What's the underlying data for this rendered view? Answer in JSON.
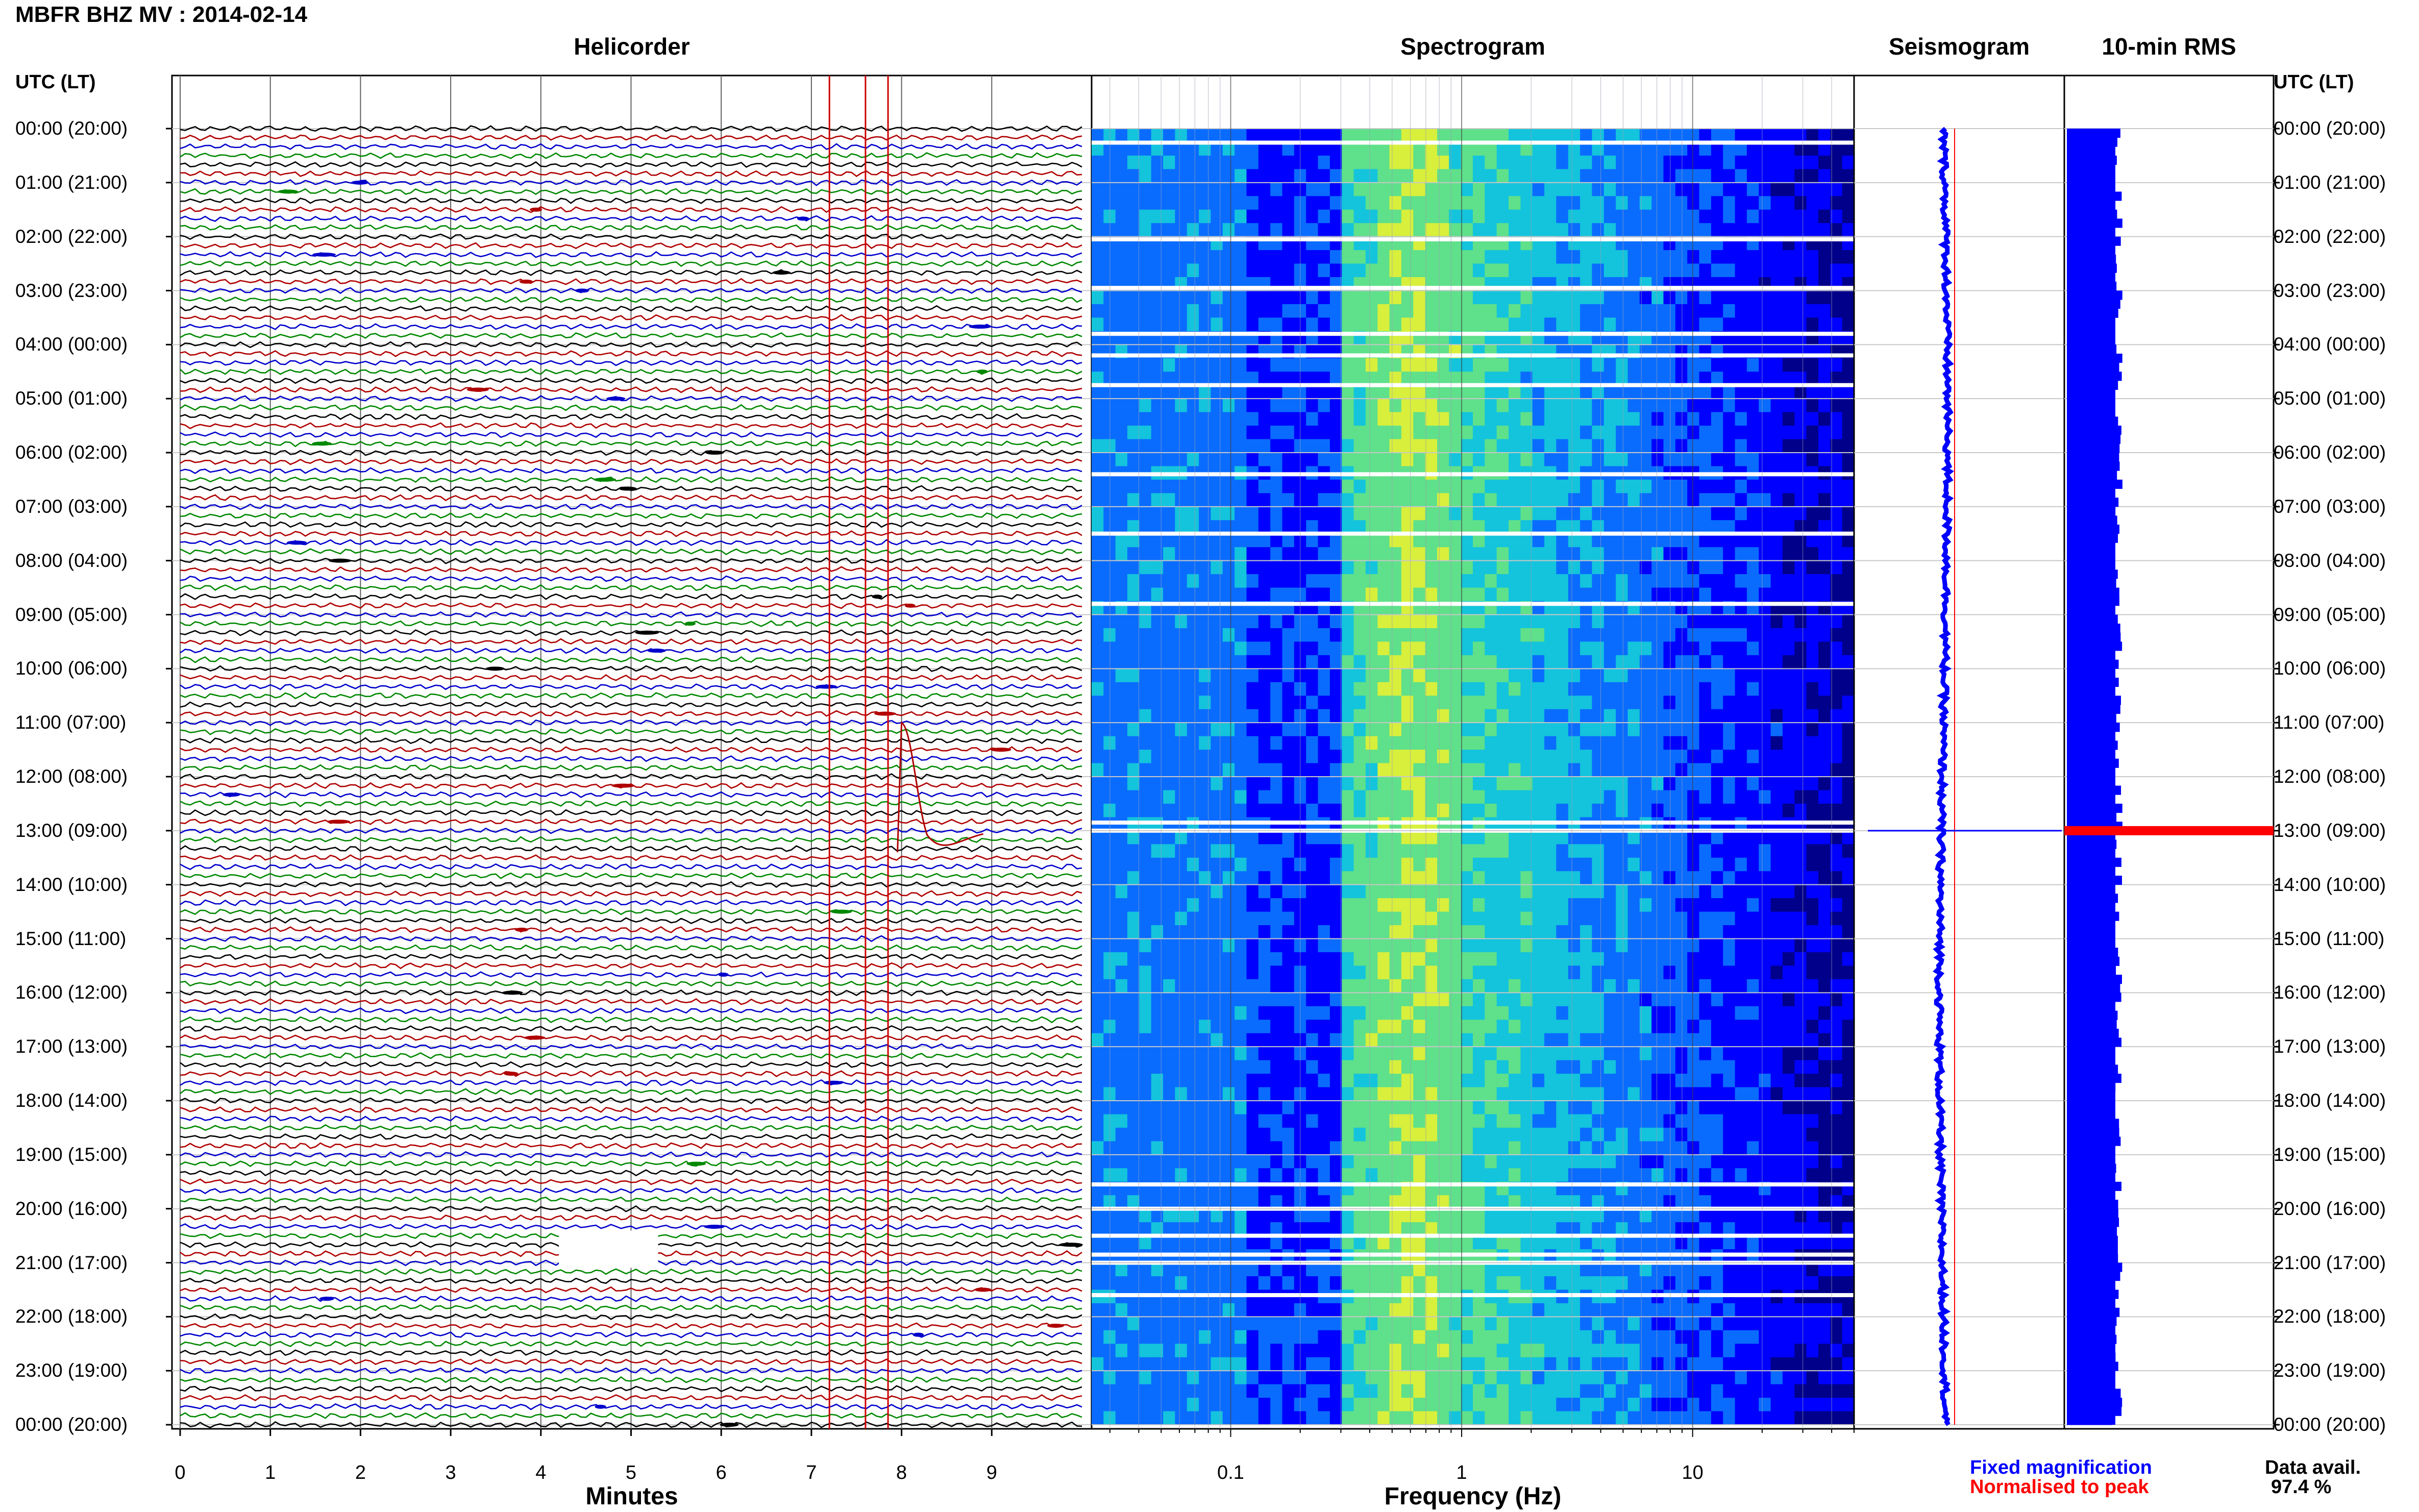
{
  "title": "MBFR BHZ MV : 2014-02-14",
  "panels": {
    "helicorder": "Helicorder",
    "spectrogram": "Spectrogram",
    "seismogram": "Seismogram",
    "rms": "10-min RMS"
  },
  "axis_labels": {
    "minutes": "Minutes",
    "frequency": "Frequency (Hz)",
    "utc_left": "UTC (LT)",
    "utc_right": "UTC (LT)"
  },
  "time_labels": [
    "00:00 (20:00)",
    "01:00 (21:00)",
    "02:00 (22:00)",
    "03:00 (23:00)",
    "04:00 (00:00)",
    "05:00 (01:00)",
    "06:00 (02:00)",
    "07:00 (03:00)",
    "08:00 (04:00)",
    "09:00 (05:00)",
    "10:00 (06:00)",
    "11:00 (07:00)",
    "12:00 (08:00)",
    "13:00 (09:00)",
    "14:00 (10:00)",
    "15:00 (11:00)",
    "16:00 (12:00)",
    "17:00 (13:00)",
    "18:00 (14:00)",
    "19:00 (15:00)",
    "20:00 (16:00)",
    "21:00 (17:00)",
    "22:00 (18:00)",
    "23:00 (19:00)",
    "00:00 (20:00)"
  ],
  "legend": {
    "fixed": "Fixed magnification",
    "normalised": "Normalised to peak",
    "fixed_color": "#0000ff",
    "normalised_color": "#ff0000"
  },
  "data_availability": {
    "label": "Data avail.",
    "value": "97.4 %"
  },
  "colors": {
    "trace_cycle": [
      "#000000",
      "#b00000",
      "#0000cc",
      "#008800"
    ],
    "event_marker": "#cc0000",
    "rms_bar": "#0000ff",
    "rms_peak": "#ff0000"
  },
  "chart_data": [
    {
      "type": "line",
      "panel": "Helicorder",
      "xlabel": "Minutes",
      "xlim": [
        0,
        10
      ],
      "x_ticks": [
        "0",
        "1",
        "2",
        "3",
        "4",
        "5",
        "6",
        "7",
        "8",
        "9"
      ],
      "rows_per_hour": 6,
      "hours": 24,
      "event_markers_minutes": [
        7.2,
        7.6,
        7.85
      ],
      "event": {
        "row_time": "11:00 (07:00)",
        "minute": 8.0
      }
    },
    {
      "type": "heatmap",
      "panel": "Spectrogram",
      "xlabel": "Frequency (Hz)",
      "xscale": "log",
      "xlim": [
        0.025,
        50
      ],
      "x_ticks": [
        "0.1",
        "1",
        "10"
      ],
      "colormap": [
        "#00008b",
        "#0000ff",
        "#0a6cff",
        "#13c4dc",
        "#5fe08a",
        "#d8ef3c"
      ]
    },
    {
      "type": "line",
      "panel": "Seismogram",
      "peak_time": "13:00 (09:00)"
    },
    {
      "type": "bar",
      "panel": "10-min RMS",
      "peak_time": "13:00 (09:00)"
    }
  ]
}
